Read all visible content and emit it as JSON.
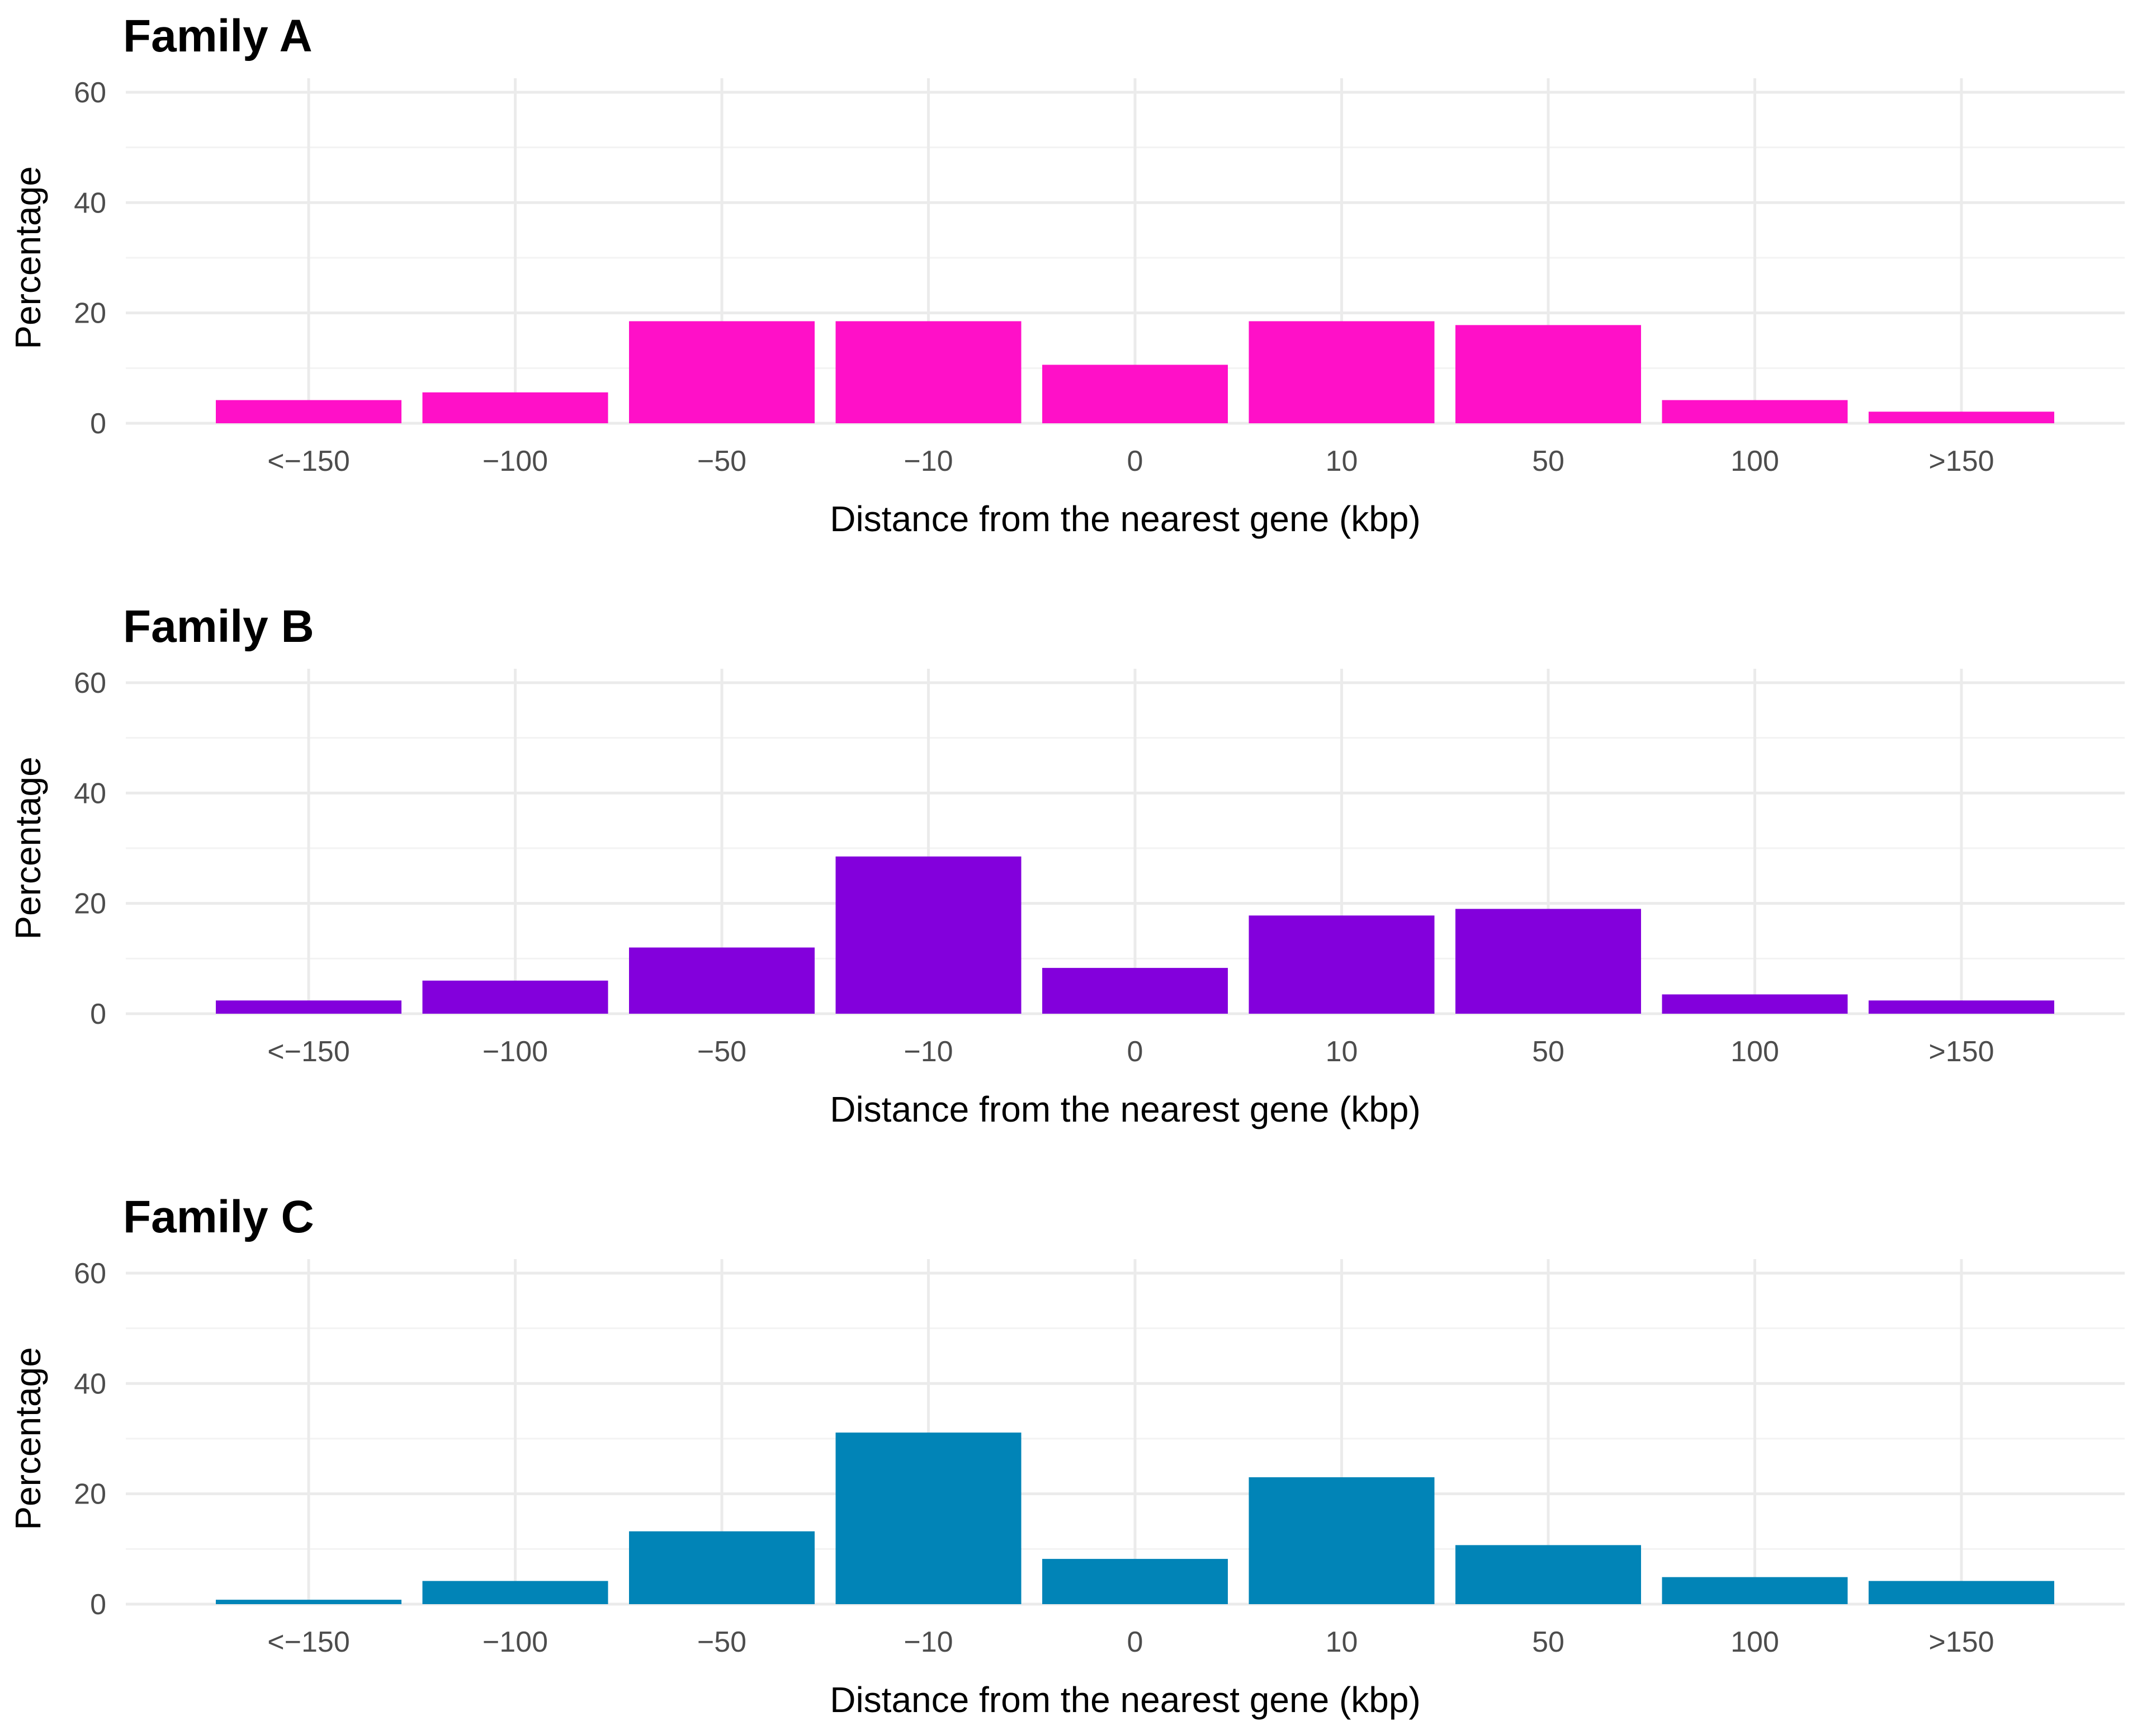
{
  "chart_data": [
    {
      "type": "bar",
      "title": "Family A",
      "xlabel": "Distance from the nearest gene (kbp)",
      "ylabel": "Percentage",
      "ylim": [
        0,
        60
      ],
      "yticks": [
        "0",
        "20",
        "40",
        "60"
      ],
      "categories": [
        "<−150",
        "−100",
        "−50",
        "−10",
        "0",
        "10",
        "50",
        "100",
        ">150"
      ],
      "values": [
        4.2,
        5.6,
        18.5,
        18.5,
        10.6,
        18.5,
        17.8,
        4.2,
        2.1
      ],
      "color": "#ff10c8",
      "grid": true
    },
    {
      "type": "bar",
      "title": "Family B",
      "xlabel": "Distance from the nearest gene (kbp)",
      "ylabel": "Percentage",
      "ylim": [
        0,
        60
      ],
      "yticks": [
        "0",
        "20",
        "40",
        "60"
      ],
      "categories": [
        "<−150",
        "−100",
        "−50",
        "−10",
        "0",
        "10",
        "50",
        "100",
        ">150"
      ],
      "values": [
        2.4,
        6.0,
        12.0,
        28.5,
        8.3,
        17.8,
        19.0,
        3.5,
        2.4
      ],
      "color": "#8300dc",
      "grid": true
    },
    {
      "type": "bar",
      "title": "Family C",
      "xlabel": "Distance from the nearest gene (kbp)",
      "ylabel": "Percentage",
      "ylim": [
        0,
        60
      ],
      "yticks": [
        "0",
        "20",
        "40",
        "60"
      ],
      "categories": [
        "<−150",
        "−100",
        "−50",
        "−10",
        "0",
        "10",
        "50",
        "100",
        ">150"
      ],
      "values": [
        0.8,
        4.2,
        13.2,
        31.1,
        8.2,
        23.0,
        10.7,
        4.9,
        4.2
      ],
      "color": "#0184b7",
      "grid": true
    }
  ]
}
